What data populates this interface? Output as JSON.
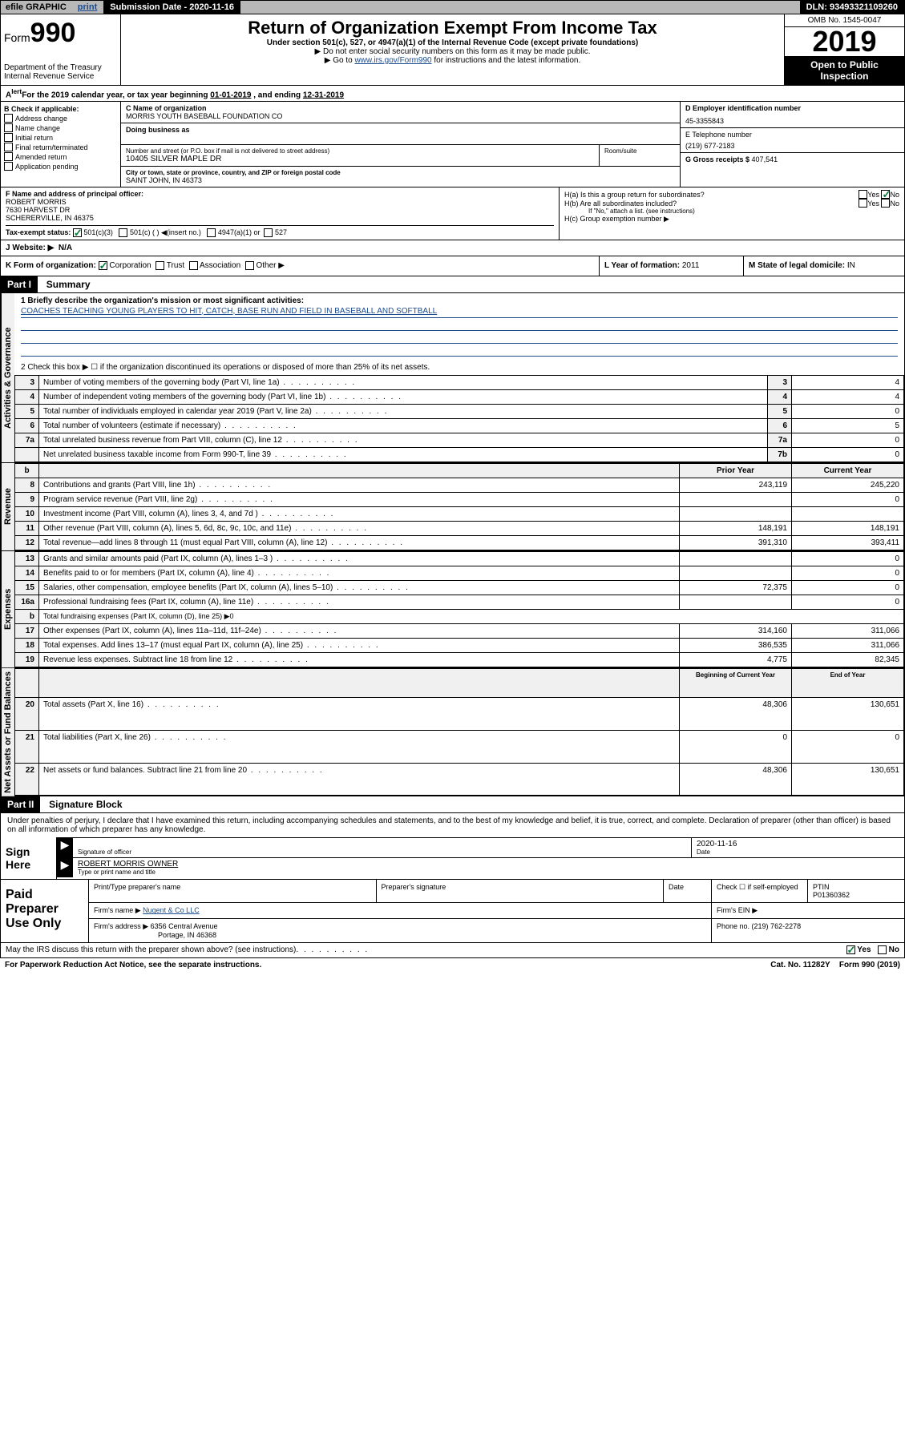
{
  "topbar": {
    "efile": "efile GRAPHIC",
    "print": "print",
    "subdate_label": "Submission Date - ",
    "subdate": "2020-11-16",
    "dln_label": "DLN: ",
    "dln": "93493321109260"
  },
  "header": {
    "form_prefix": "Form",
    "form_num": "990",
    "dept": "Department of the Treasury",
    "irs": "Internal Revenue Service",
    "title": "Return of Organization Exempt From Income Tax",
    "sub1": "Under section 501(c), 527, or 4947(a)(1) of the Internal Revenue Code (except private foundations)",
    "sub2": "▶ Do not enter social security numbers on this form as it may be made public.",
    "sub3_pre": "▶ Go to ",
    "sub3_link": "www.irs.gov/Form990",
    "sub3_post": " for instructions and the latest information.",
    "omb": "OMB No. 1545-0047",
    "year": "2019",
    "open": "Open to Public Inspection"
  },
  "section_a": {
    "text_pre": "For the 2019 calendar year, or tax year beginning ",
    "begin": "01-01-2019",
    "text_mid": " , and ending ",
    "end": "12-31-2019"
  },
  "col_b": {
    "label": "B Check if applicable:",
    "items": [
      "Address change",
      "Name change",
      "Initial return",
      "Final return/terminated",
      "Amended return",
      "Application pending"
    ]
  },
  "col_c": {
    "name_label": "C Name of organization",
    "name": "MORRIS YOUTH BASEBALL FOUNDATION CO",
    "dba_label": "Doing business as",
    "addr_label": "Number and street (or P.O. box if mail is not delivered to street address)",
    "room_label": "Room/suite",
    "addr": "10405 SILVER MAPLE DR",
    "city_label": "City or town, state or province, country, and ZIP or foreign postal code",
    "city": "SAINT JOHN, IN  46373"
  },
  "col_d": {
    "ein_label": "D Employer identification number",
    "ein": "45-3355843",
    "phone_label": "E Telephone number",
    "phone": "(219) 677-2183",
    "gross_label": "G Gross receipts $ ",
    "gross": "407,541"
  },
  "row_f": {
    "label": "F  Name and address of principal officer:",
    "name": "ROBERT MORRIS",
    "addr1": "7630 HARVEST DR",
    "addr2": "SCHERERVILLE, IN  46375"
  },
  "row_h": {
    "ha": "H(a)  Is this a group return for subordinates?",
    "hb": "H(b)  Are all subordinates included?",
    "hb_note": "If \"No,\" attach a list. (see instructions)",
    "hc": "H(c)  Group exemption number ▶",
    "yes": "Yes",
    "no": "No"
  },
  "status": {
    "label": "Tax-exempt status:",
    "opt1": "501(c)(3)",
    "opt2": "501(c) (   ) ◀(insert no.)",
    "opt3": "4947(a)(1) or",
    "opt4": "527"
  },
  "website": {
    "label": "J   Website: ▶",
    "val": "N/A"
  },
  "korg": {
    "k_label": "K Form of organization:",
    "k_opts": [
      "Corporation",
      "Trust",
      "Association",
      "Other ▶"
    ],
    "l_label": "L Year of formation: ",
    "l_val": "2011",
    "m_label": "M State of legal domicile: ",
    "m_val": "IN"
  },
  "part1": {
    "header": "Part I",
    "title": "Summary",
    "q1": "1  Briefly describe the organization's mission or most significant activities:",
    "mission": "COACHES TEACHING YOUNG PLAYERS TO HIT, CATCH, BASE RUN AND FIELD IN BASEBALL AND SOFTBALL",
    "q2": "2   Check this box ▶ ☐  if the organization discontinued its operations or disposed of more than 25% of its net assets.",
    "vlabel_gov": "Activities & Governance",
    "vlabel_rev": "Revenue",
    "vlabel_exp": "Expenses",
    "vlabel_net": "Net Assets or Fund Balances",
    "rows_gov": [
      {
        "n": "3",
        "d": "Number of voting members of the governing body (Part VI, line 1a)",
        "c": "3",
        "v": "4"
      },
      {
        "n": "4",
        "d": "Number of independent voting members of the governing body (Part VI, line 1b)",
        "c": "4",
        "v": "4"
      },
      {
        "n": "5",
        "d": "Total number of individuals employed in calendar year 2019 (Part V, line 2a)",
        "c": "5",
        "v": "0"
      },
      {
        "n": "6",
        "d": "Total number of volunteers (estimate if necessary)",
        "c": "6",
        "v": "5"
      },
      {
        "n": "7a",
        "d": "Total unrelated business revenue from Part VIII, column (C), line 12",
        "c": "7a",
        "v": "0"
      },
      {
        "n": "",
        "d": "Net unrelated business taxable income from Form 990-T, line 39",
        "c": "7b",
        "v": "0"
      }
    ],
    "hdr_prior": "Prior Year",
    "hdr_curr": "Current Year",
    "rows_rev": [
      {
        "n": "8",
        "d": "Contributions and grants (Part VIII, line 1h)",
        "p": "243,119",
        "c": "245,220"
      },
      {
        "n": "9",
        "d": "Program service revenue (Part VIII, line 2g)",
        "p": "",
        "c": "0"
      },
      {
        "n": "10",
        "d": "Investment income (Part VIII, column (A), lines 3, 4, and 7d )",
        "p": "",
        "c": ""
      },
      {
        "n": "11",
        "d": "Other revenue (Part VIII, column (A), lines 5, 6d, 8c, 9c, 10c, and 11e)",
        "p": "148,191",
        "c": "148,191"
      },
      {
        "n": "12",
        "d": "Total revenue—add lines 8 through 11 (must equal Part VIII, column (A), line 12)",
        "p": "391,310",
        "c": "393,411"
      }
    ],
    "rows_exp": [
      {
        "n": "13",
        "d": "Grants and similar amounts paid (Part IX, column (A), lines 1–3 )",
        "p": "",
        "c": "0"
      },
      {
        "n": "14",
        "d": "Benefits paid to or for members (Part IX, column (A), line 4)",
        "p": "",
        "c": "0"
      },
      {
        "n": "15",
        "d": "Salaries, other compensation, employee benefits (Part IX, column (A), lines 5–10)",
        "p": "72,375",
        "c": "0"
      },
      {
        "n": "16a",
        "d": "Professional fundraising fees (Part IX, column (A), line 11e)",
        "p": "",
        "c": "0"
      },
      {
        "n": "b",
        "d": "Total fundraising expenses (Part IX, column (D), line 25) ▶0",
        "p": "—",
        "c": "—"
      },
      {
        "n": "17",
        "d": "Other expenses (Part IX, column (A), lines 11a–11d, 11f–24e)",
        "p": "314,160",
        "c": "311,066"
      },
      {
        "n": "18",
        "d": "Total expenses. Add lines 13–17 (must equal Part IX, column (A), line 25)",
        "p": "386,535",
        "c": "311,066"
      },
      {
        "n": "19",
        "d": "Revenue less expenses. Subtract line 18 from line 12",
        "p": "4,775",
        "c": "82,345"
      }
    ],
    "hdr_boy": "Beginning of Current Year",
    "hdr_eoy": "End of Year",
    "rows_net": [
      {
        "n": "20",
        "d": "Total assets (Part X, line 16)",
        "p": "48,306",
        "c": "130,651"
      },
      {
        "n": "21",
        "d": "Total liabilities (Part X, line 26)",
        "p": "0",
        "c": "0"
      },
      {
        "n": "22",
        "d": "Net assets or fund balances. Subtract line 21 from line 20",
        "p": "48,306",
        "c": "130,651"
      }
    ]
  },
  "part2": {
    "header": "Part II",
    "title": "Signature Block",
    "decl": "Under penalties of perjury, I declare that I have examined this return, including accompanying schedules and statements, and to the best of my knowledge and belief, it is true, correct, and complete. Declaration of preparer (other than officer) is based on all information of which preparer has any knowledge.",
    "sign_here": "Sign Here",
    "sig_officer": "Signature of officer",
    "sig_date": "2020-11-16",
    "date_label": "Date",
    "officer_name": "ROBERT MORRIS OWNER",
    "type_name": "Type or print name and title",
    "paid": "Paid Preparer Use Only",
    "prep_name_label": "Print/Type preparer's name",
    "prep_sig_label": "Preparer's signature",
    "prep_date_label": "Date",
    "check_self": "Check ☐ if self-employed",
    "ptin_label": "PTIN",
    "ptin": "P01360362",
    "firm_name_label": "Firm's name    ▶ ",
    "firm_name": "Nugent & Co LLC",
    "firm_ein_label": "Firm's EIN ▶",
    "firm_addr_label": "Firm's address ▶ ",
    "firm_addr1": "6356 Central Avenue",
    "firm_addr2": "Portage, IN  46368",
    "firm_phone_label": "Phone no. ",
    "firm_phone": "(219) 762-2278",
    "discuss": "May the IRS discuss this return with the preparer shown above? (see instructions)",
    "yes": "Yes",
    "no": "No"
  },
  "footer": {
    "pra": "For Paperwork Reduction Act Notice, see the separate instructions.",
    "cat": "Cat. No. 11282Y",
    "form": "Form 990 (2019)"
  }
}
